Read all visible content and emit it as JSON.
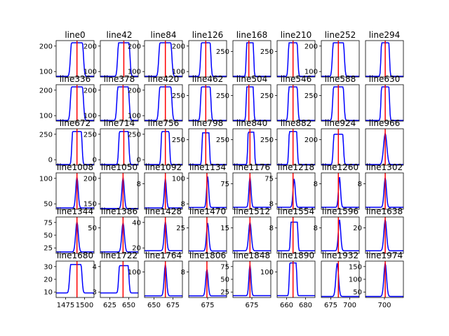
{
  "chart_data": {
    "type": "line",
    "grid": false,
    "series_colors": {
      "signal": "#0000ff",
      "marker": "#ff0000"
    },
    "panels": [
      {
        "title": "line0",
        "xticks": [],
        "yticks": [
          "100",
          "200"
        ],
        "ylim": [
          20,
          270
        ],
        "center": 0.55,
        "width": 0.38,
        "peak": 255,
        "base": 25,
        "shape": "plateau",
        "marker": 0.55
      },
      {
        "title": "line42",
        "xticks": [],
        "yticks": [
          "100",
          "200"
        ],
        "ylim": [
          20,
          270
        ],
        "center": 0.62,
        "width": 0.36,
        "peak": 255,
        "base": 25,
        "shape": "plateau",
        "marker": 0.62
      },
      {
        "title": "line84",
        "xticks": [],
        "yticks": [
          "100",
          "200"
        ],
        "ylim": [
          20,
          270
        ],
        "center": 0.55,
        "width": 0.38,
        "peak": 255,
        "base": 25,
        "shape": "plateau",
        "marker": 0.55
      },
      {
        "title": "line126",
        "xticks": [],
        "yticks": [
          "100",
          "200"
        ],
        "ylim": [
          20,
          270
        ],
        "center": 0.45,
        "width": 0.3,
        "peak": 255,
        "base": 25,
        "shape": "plateau",
        "marker": 0.45
      },
      {
        "title": "line168",
        "xticks": [],
        "yticks": [
          "250"
        ],
        "ylim": [
          20,
          270
        ],
        "center": 0.45,
        "width": 0.22,
        "peak": 255,
        "base": 25,
        "shape": "plateau",
        "marker": 0.42
      },
      {
        "title": "line210",
        "xticks": [],
        "yticks": [
          "250"
        ],
        "ylim": [
          20,
          270
        ],
        "center": 0.42,
        "width": 0.28,
        "peak": 255,
        "base": 25,
        "shape": "plateau",
        "marker": 0.42
      },
      {
        "title": "line252",
        "xticks": [],
        "yticks": [
          "100",
          "200"
        ],
        "ylim": [
          20,
          270
        ],
        "center": 0.45,
        "width": 0.35,
        "peak": 255,
        "base": 25,
        "shape": "plateau",
        "marker": 0.45
      },
      {
        "title": "line294",
        "xticks": [],
        "yticks": [],
        "ylim": [
          20,
          270
        ],
        "center": 0.52,
        "width": 0.25,
        "peak": 255,
        "base": 25,
        "shape": "plateau",
        "marker": 0.52
      },
      {
        "title": "line336",
        "xticks": [],
        "yticks": [
          "100",
          "200"
        ],
        "ylim": [
          20,
          270
        ],
        "center": 0.55,
        "width": 0.38,
        "peak": 255,
        "base": 25,
        "shape": "plateau",
        "marker": 0.55
      },
      {
        "title": "line378",
        "xticks": [],
        "yticks": [
          "100",
          "200"
        ],
        "ylim": [
          20,
          270
        ],
        "center": 0.6,
        "width": 0.36,
        "peak": 255,
        "base": 25,
        "shape": "plateau",
        "marker": 0.6
      },
      {
        "title": "line420",
        "xticks": [],
        "yticks": [
          "100",
          "200"
        ],
        "ylim": [
          20,
          270
        ],
        "center": 0.55,
        "width": 0.38,
        "peak": 255,
        "base": 25,
        "shape": "plateau",
        "marker": 0.55
      },
      {
        "title": "line462",
        "xticks": [],
        "yticks": [
          "250"
        ],
        "ylim": [
          20,
          270
        ],
        "center": 0.45,
        "width": 0.3,
        "peak": 255,
        "base": 25,
        "shape": "plateau",
        "marker": 0.45
      },
      {
        "title": "line504",
        "xticks": [],
        "yticks": [
          "250"
        ],
        "ylim": [
          20,
          270
        ],
        "center": 0.45,
        "width": 0.22,
        "peak": 255,
        "base": 25,
        "shape": "plateau",
        "marker": 0.42
      },
      {
        "title": "line546",
        "xticks": [],
        "yticks": [
          "250"
        ],
        "ylim": [
          20,
          270
        ],
        "center": 0.42,
        "width": 0.28,
        "peak": 255,
        "base": 25,
        "shape": "plateau",
        "marker": 0.42
      },
      {
        "title": "line588",
        "xticks": [],
        "yticks": [
          "250"
        ],
        "ylim": [
          20,
          270
        ],
        "center": 0.45,
        "width": 0.33,
        "peak": 255,
        "base": 25,
        "shape": "plateau",
        "marker": 0.45
      },
      {
        "title": "line630",
        "xticks": [],
        "yticks": [],
        "ylim": [
          20,
          270
        ],
        "center": 0.52,
        "width": 0.25,
        "peak": 255,
        "base": 25,
        "shape": "plateau",
        "marker": 0.52
      },
      {
        "title": "line672",
        "xticks": [],
        "yticks": [
          "0",
          "250"
        ],
        "ylim": [
          0,
          270
        ],
        "center": 0.55,
        "width": 0.3,
        "peak": 250,
        "base": 5,
        "shape": "plateau",
        "marker": 0.55
      },
      {
        "title": "line714",
        "xticks": [],
        "yticks": [
          "0",
          "250"
        ],
        "ylim": [
          0,
          270
        ],
        "center": 0.62,
        "width": 0.3,
        "peak": 250,
        "base": 5,
        "shape": "plateau",
        "marker": 0.62
      },
      {
        "title": "line756",
        "xticks": [],
        "yticks": [
          "0",
          "250"
        ],
        "ylim": [
          0,
          270
        ],
        "center": 0.55,
        "width": 0.25,
        "peak": 250,
        "base": 5,
        "shape": "plateau",
        "marker": 0.55
      },
      {
        "title": "line798",
        "xticks": [],
        "yticks": [
          "250"
        ],
        "ylim": [
          0,
          270
        ],
        "center": 0.45,
        "width": 0.22,
        "peak": 240,
        "base": 5,
        "shape": "plateau",
        "marker": 0.45
      },
      {
        "title": "line840",
        "xticks": [],
        "yticks": [
          "250"
        ],
        "ylim": [
          0,
          270
        ],
        "center": 0.48,
        "width": 0.2,
        "peak": 245,
        "base": 5,
        "shape": "plateau",
        "marker": 0.45
      },
      {
        "title": "line882",
        "xticks": [],
        "yticks": [
          "250"
        ],
        "ylim": [
          0,
          270
        ],
        "center": 0.42,
        "width": 0.25,
        "peak": 250,
        "base": 5,
        "shape": "plateau",
        "marker": 0.42
      },
      {
        "title": "line924",
        "xticks": [],
        "yticks": [
          "200"
        ],
        "ylim": [
          0,
          270
        ],
        "center": 0.45,
        "width": 0.3,
        "peak": 230,
        "base": 5,
        "shape": "plateau",
        "marker": 0.45
      },
      {
        "title": "line966",
        "xticks": [],
        "yticks": [],
        "ylim": [
          0,
          270
        ],
        "center": 0.52,
        "width": 0.22,
        "peak": 235,
        "base": 5,
        "shape": "peak",
        "marker": 0.52
      },
      {
        "title": "line1008",
        "xticks": [],
        "yticks": [
          "50",
          "100"
        ],
        "ylim": [
          10,
          140
        ],
        "center": 0.55,
        "width": 0.16,
        "peak": 125,
        "base": 15,
        "shape": "peak",
        "marker": 0.55
      },
      {
        "title": "line1050",
        "xticks": [],
        "yticks": [
          "150",
          "200"
        ],
        "ylim": [
          10,
          240
        ],
        "center": 0.6,
        "width": 0.16,
        "peak": 210,
        "base": 15,
        "shape": "peak",
        "marker": 0.6
      },
      {
        "title": "line1092",
        "xticks": [],
        "yticks": [
          "8"
        ],
        "ylim": [
          10,
          140
        ],
        "center": 0.55,
        "width": 0.14,
        "peak": 120,
        "base": 15,
        "shape": "peak",
        "marker": 0.55
      },
      {
        "title": "line1134",
        "xticks": [],
        "yticks": [
          "8",
          "100"
        ],
        "ylim": [
          10,
          110
        ],
        "center": 0.5,
        "width": 0.14,
        "peak": 100,
        "base": 15,
        "shape": "peak",
        "marker": 0.48
      },
      {
        "title": "line1176",
        "xticks": [],
        "yticks": [
          "75"
        ],
        "ylim": [
          10,
          100
        ],
        "center": 0.45,
        "width": 0.14,
        "peak": 90,
        "base": 15,
        "shape": "peak",
        "marker": 0.45
      },
      {
        "title": "line1218",
        "xticks": [],
        "yticks": [
          "8",
          "75"
        ],
        "ylim": [
          10,
          100
        ],
        "center": 0.45,
        "width": 0.15,
        "peak": 85,
        "base": 15,
        "shape": "peak",
        "marker": 0.42
      },
      {
        "title": "line1260",
        "xticks": [],
        "yticks": [
          "8"
        ],
        "ylim": [
          10,
          100
        ],
        "center": 0.48,
        "width": 0.14,
        "peak": 90,
        "base": 15,
        "shape": "peak",
        "marker": 0.45
      },
      {
        "title": "line1302",
        "xticks": [],
        "yticks": [
          "8"
        ],
        "ylim": [
          10,
          100
        ],
        "center": 0.52,
        "width": 0.16,
        "peak": 88,
        "base": 15,
        "shape": "peak",
        "marker": 0.52
      },
      {
        "title": "line1344",
        "xticks": [],
        "yticks": [
          "25",
          "50",
          "75"
        ],
        "ylim": [
          15,
          90
        ],
        "center": 0.55,
        "width": 0.18,
        "peak": 80,
        "base": 18,
        "shape": "peak",
        "marker": 0.55
      },
      {
        "title": "line1386",
        "xticks": [],
        "yticks": [
          "50"
        ],
        "ylim": [
          20,
          70
        ],
        "center": 0.6,
        "width": 0.18,
        "peak": 62,
        "base": 22,
        "shape": "peak",
        "marker": 0.6
      },
      {
        "title": "line1428",
        "xticks": [],
        "yticks": [
          "20",
          "40"
        ],
        "ylim": [
          5,
          45
        ],
        "center": 0.55,
        "width": 0.16,
        "peak": 40,
        "base": 8,
        "shape": "peak",
        "marker": 0.55
      },
      {
        "title": "line1470",
        "xticks": [],
        "yticks": [
          "25"
        ],
        "ylim": [
          10,
          40
        ],
        "center": 0.5,
        "width": 0.16,
        "peak": 35,
        "base": 12,
        "shape": "peak",
        "marker": 0.48
      },
      {
        "title": "line1512",
        "xticks": [],
        "yticks": [
          "15"
        ],
        "ylim": [
          8,
          22
        ],
        "center": 0.45,
        "width": 0.18,
        "peak": 20,
        "base": 9,
        "shape": "peak",
        "marker": 0.45
      },
      {
        "title": "line1554",
        "xticks": [],
        "yticks": [
          "8"
        ],
        "ylim": [
          8,
          22
        ],
        "center": 0.45,
        "width": 0.22,
        "peak": 20,
        "base": 9,
        "shape": "plateau",
        "marker": 0.42
      },
      {
        "title": "line1596",
        "xticks": [],
        "yticks": [
          "8"
        ],
        "ylim": [
          8,
          22
        ],
        "center": 0.48,
        "width": 0.16,
        "peak": 21,
        "base": 9,
        "shape": "peak",
        "marker": 0.45
      },
      {
        "title": "line1638",
        "xticks": [],
        "yticks": [
          "20"
        ],
        "ylim": [
          8,
          22
        ],
        "center": 0.52,
        "width": 0.18,
        "peak": 21,
        "base": 9,
        "shape": "peak",
        "marker": 0.52
      },
      {
        "title": "line1680",
        "xticks": [
          "1475",
          "1500"
        ],
        "yticks": [
          "10",
          "20",
          "30"
        ],
        "ylim": [
          8,
          40
        ],
        "center": 0.52,
        "width": 0.36,
        "peak": 37,
        "base": 12,
        "shape": "plateau",
        "marker": 0.55
      },
      {
        "title": "line1722",
        "xticks": [
          "625",
          "650"
        ],
        "yticks": [
          "3",
          "4"
        ],
        "ylim": [
          8,
          40
        ],
        "center": 0.62,
        "width": 0.3,
        "peak": 36,
        "base": 12,
        "shape": "plateau",
        "marker": 0.6
      },
      {
        "title": "line1764",
        "xticks": [
          "650",
          "675"
        ],
        "yticks": [
          "100"
        ],
        "ylim": [
          10,
          120
        ],
        "center": 0.55,
        "width": 0.16,
        "peak": 110,
        "base": 15,
        "shape": "peak",
        "marker": 0.55
      },
      {
        "title": "line1806",
        "xticks": [
          "675"
        ],
        "yticks": [
          "8"
        ],
        "ylim": [
          10,
          120
        ],
        "center": 0.48,
        "width": 0.16,
        "peak": 95,
        "base": 15,
        "shape": "peak",
        "marker": 0.48
      },
      {
        "title": "line1848",
        "xticks": [
          "675"
        ],
        "yticks": [
          "25",
          "50",
          "75"
        ],
        "ylim": [
          10,
          110
        ],
        "center": 0.45,
        "width": 0.14,
        "peak": 100,
        "base": 15,
        "shape": "peak",
        "marker": 0.45
      },
      {
        "title": "line1890",
        "xticks": [
          "660",
          "680"
        ],
        "yticks": [
          "100"
        ],
        "ylim": [
          10,
          110
        ],
        "center": 0.42,
        "width": 0.22,
        "peak": 105,
        "base": 15,
        "shape": "plateau",
        "marker": 0.42
      },
      {
        "title": "line1932",
        "xticks": [
          "675",
          "700"
        ],
        "yticks": [],
        "ylim": [
          10,
          180
        ],
        "center": 0.42,
        "width": 0.18,
        "peak": 170,
        "base": 15,
        "shape": "peak",
        "marker": 0.45
      },
      {
        "title": "line1974",
        "xticks": [
          "700"
        ],
        "yticks": [
          "50",
          "100",
          "150"
        ],
        "ylim": [
          10,
          180
        ],
        "center": 0.52,
        "width": 0.18,
        "peak": 170,
        "base": 15,
        "shape": "peak",
        "marker": 0.52
      }
    ]
  }
}
